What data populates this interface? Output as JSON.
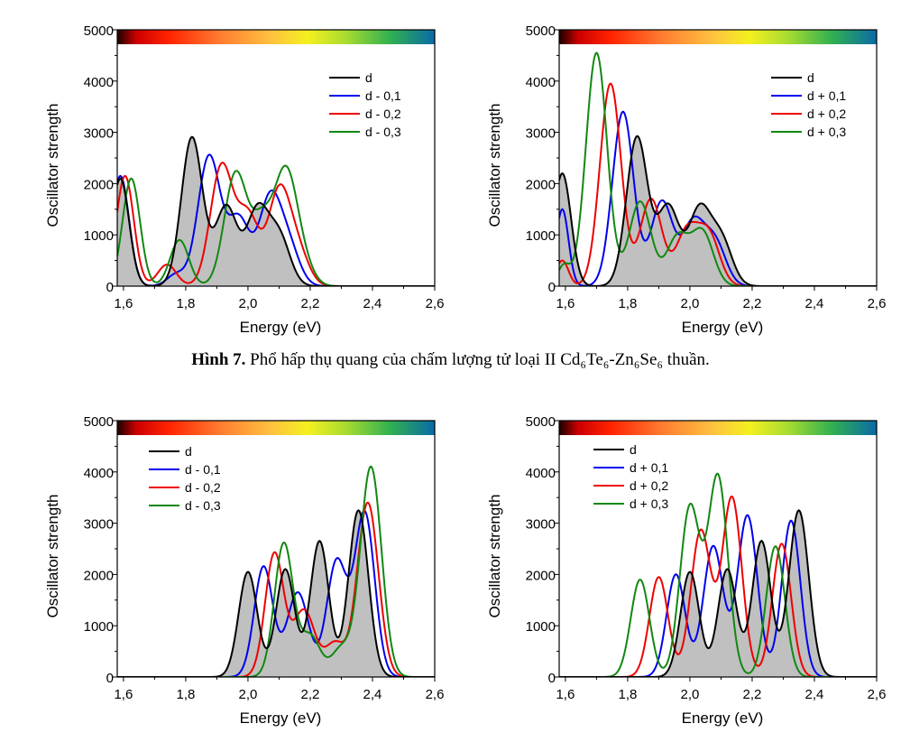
{
  "figure": {
    "caption_label": "Hình 7.",
    "caption_text": "Phổ hấp thụ quang của chấm lượng tử loại II Cd₆Te₆-Zn₆Se₆ thuần."
  },
  "chart_data": [
    {
      "type": "line",
      "panel": "top-left",
      "xlabel": "Energy (eV)",
      "ylabel": "Oscillator strength",
      "xlim": [
        1.58,
        2.6
      ],
      "ylim": [
        0,
        5000
      ],
      "xticks": [
        "1,6",
        "1,8",
        "2,0",
        "2,2",
        "2,4",
        "2,6"
      ],
      "yticks": [
        "0",
        "1000",
        "2000",
        "3000",
        "4000",
        "5000"
      ],
      "legend_position": "top-right",
      "series": [
        {
          "name": "d",
          "color": "#000000",
          "fill": true,
          "peaks": [
            [
              1.59,
              2100,
              0.028
            ],
            [
              1.82,
              2900,
              0.034
            ],
            [
              1.93,
              1550,
              0.035
            ],
            [
              2.03,
              1450,
              0.035
            ],
            [
              2.1,
              950,
              0.035
            ]
          ]
        },
        {
          "name": "d - 0,1",
          "color": "#0000ee",
          "fill": false,
          "peaks": [
            [
              1.59,
              2150,
              0.028
            ],
            [
              1.77,
              230,
              0.03
            ],
            [
              1.875,
              2530,
              0.036
            ],
            [
              1.97,
              1300,
              0.035
            ],
            [
              2.07,
              1650,
              0.035
            ],
            [
              2.13,
              750,
              0.035
            ]
          ]
        },
        {
          "name": "d - 0,2",
          "color": "#ee0000",
          "fill": false,
          "peaks": [
            [
              1.605,
              2150,
              0.028
            ],
            [
              1.74,
              420,
              0.03
            ],
            [
              1.915,
              2330,
              0.036
            ],
            [
              2.0,
              1350,
              0.035
            ],
            [
              2.1,
              1800,
              0.035
            ],
            [
              2.16,
              650,
              0.035
            ]
          ]
        },
        {
          "name": "d - 0,3",
          "color": "#118811",
          "fill": false,
          "peaks": [
            [
              1.625,
              2100,
              0.028
            ],
            [
              1.78,
              900,
              0.03
            ],
            [
              1.96,
              2180,
              0.036
            ],
            [
              2.045,
              1200,
              0.035
            ],
            [
              2.12,
              2050,
              0.035
            ],
            [
              2.17,
              500,
              0.035
            ]
          ]
        }
      ]
    },
    {
      "type": "line",
      "panel": "top-right",
      "xlabel": "Energy (eV)",
      "ylabel": "Oscillator strength",
      "xlim": [
        1.58,
        2.6
      ],
      "ylim": [
        0,
        5000
      ],
      "xticks": [
        "1,6",
        "1,8",
        "2,0",
        "2,2",
        "2,4",
        "2,6"
      ],
      "yticks": [
        "0",
        "1000",
        "2000",
        "3000",
        "4000",
        "5000"
      ],
      "legend_position": "top-right",
      "series": [
        {
          "name": "d",
          "color": "#000000",
          "fill": true,
          "peaks": [
            [
              1.59,
              2200,
              0.028
            ],
            [
              1.83,
              2900,
              0.034
            ],
            [
              1.93,
              1550,
              0.035
            ],
            [
              2.03,
              1450,
              0.035
            ],
            [
              2.1,
              900,
              0.035
            ]
          ]
        },
        {
          "name": "d + 0,1",
          "color": "#0000ee",
          "fill": false,
          "peaks": [
            [
              1.59,
              1500,
              0.02
            ],
            [
              1.785,
              3400,
              0.034
            ],
            [
              1.91,
              1650,
              0.035
            ],
            [
              2.01,
              1200,
              0.035
            ],
            [
              2.08,
              850,
              0.035
            ]
          ]
        },
        {
          "name": "d + 0,2",
          "color": "#ee0000",
          "fill": false,
          "peaks": [
            [
              1.59,
              500,
              0.02
            ],
            [
              1.745,
              3950,
              0.034
            ],
            [
              1.875,
              1700,
              0.035
            ],
            [
              1.99,
              1050,
              0.035
            ],
            [
              2.06,
              1000,
              0.035
            ]
          ]
        },
        {
          "name": "d + 0,3",
          "color": "#118811",
          "fill": false,
          "peaks": [
            [
              1.595,
              400,
              0.02
            ],
            [
              1.7,
              4550,
              0.034
            ],
            [
              1.84,
              1650,
              0.035
            ],
            [
              1.96,
              950,
              0.035
            ],
            [
              2.04,
              1050,
              0.035
            ]
          ]
        }
      ]
    },
    {
      "type": "line",
      "panel": "bottom-left",
      "xlabel": "Energy (eV)",
      "ylabel": "Oscillator strength",
      "xlim": [
        1.58,
        2.6
      ],
      "ylim": [
        0,
        5000
      ],
      "xticks": [
        "1,6",
        "1,8",
        "2,0",
        "2,2",
        "2,4",
        "2,6"
      ],
      "yticks": [
        "0",
        "1000",
        "2000",
        "3000",
        "4000",
        "5000"
      ],
      "legend_position": "top-left",
      "series": [
        {
          "name": "d",
          "color": "#000000",
          "fill": true,
          "peaks": [
            [
              2.0,
              2050,
              0.03
            ],
            [
              2.12,
              2100,
              0.03
            ],
            [
              2.23,
              2650,
              0.03
            ],
            [
              2.355,
              3250,
              0.032
            ]
          ]
        },
        {
          "name": "d - 0,1",
          "color": "#0000ee",
          "fill": false,
          "peaks": [
            [
              2.05,
              2150,
              0.03
            ],
            [
              2.16,
              1650,
              0.035
            ],
            [
              2.285,
              2250,
              0.032
            ],
            [
              2.375,
              3200,
              0.032
            ]
          ]
        },
        {
          "name": "d - 0,2",
          "color": "#ee0000",
          "fill": false,
          "peaks": [
            [
              2.085,
              2400,
              0.03
            ],
            [
              2.18,
              1300,
              0.035
            ],
            [
              2.28,
              650,
              0.032
            ],
            [
              2.385,
              3400,
              0.034
            ]
          ]
        },
        {
          "name": "d - 0,3",
          "color": "#118811",
          "fill": false,
          "peaks": [
            [
              2.115,
              2600,
              0.03
            ],
            [
              2.2,
              800,
              0.032
            ],
            [
              2.3,
              550,
              0.032
            ],
            [
              2.395,
              4100,
              0.034
            ]
          ]
        }
      ]
    },
    {
      "type": "line",
      "panel": "bottom-right",
      "xlabel": "Energy (eV)",
      "ylabel": "Oscillator strength",
      "xlim": [
        1.58,
        2.6
      ],
      "ylim": [
        0,
        5000
      ],
      "xticks": [
        "1,6",
        "1,8",
        "2,0",
        "2,2",
        "2,4",
        "2,6"
      ],
      "yticks": [
        "0",
        "1000",
        "2000",
        "3000",
        "4000",
        "5000"
      ],
      "legend_position": "top-left",
      "series": [
        {
          "name": "d",
          "color": "#000000",
          "fill": true,
          "peaks": [
            [
              2.0,
              2050,
              0.03
            ],
            [
              2.12,
              2100,
              0.03
            ],
            [
              2.23,
              2650,
              0.03
            ],
            [
              2.35,
              3250,
              0.032
            ]
          ]
        },
        {
          "name": "d + 0,1",
          "color": "#0000ee",
          "fill": false,
          "peaks": [
            [
              1.955,
              2000,
              0.03
            ],
            [
              2.075,
              2550,
              0.032
            ],
            [
              2.185,
              3150,
              0.032
            ],
            [
              2.325,
              3050,
              0.03
            ]
          ]
        },
        {
          "name": "d + 0,2",
          "color": "#ee0000",
          "fill": false,
          "peaks": [
            [
              1.9,
              1950,
              0.03
            ],
            [
              2.035,
              2850,
              0.032
            ],
            [
              2.135,
              3500,
              0.032
            ],
            [
              2.295,
              2600,
              0.03
            ]
          ]
        },
        {
          "name": "d + 0,3",
          "color": "#118811",
          "fill": false,
          "peaks": [
            [
              1.84,
              1900,
              0.03
            ],
            [
              2.0,
              3300,
              0.032
            ],
            [
              2.09,
              3900,
              0.032
            ],
            [
              2.275,
              2550,
              0.03
            ]
          ]
        }
      ]
    }
  ]
}
